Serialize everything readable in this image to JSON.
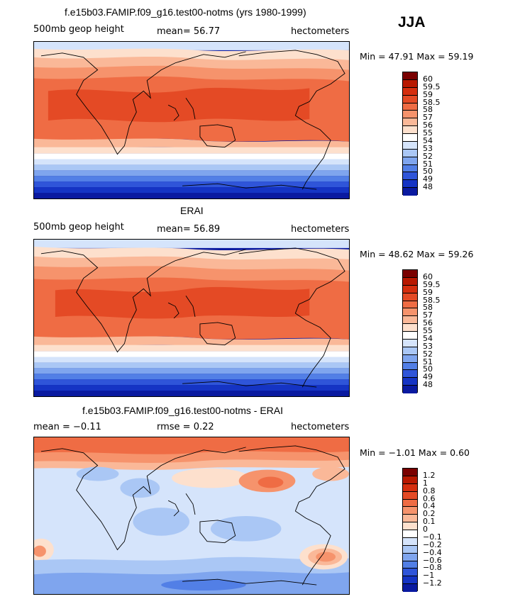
{
  "season": "JJA",
  "panels": [
    {
      "title": "f.e15b03.FAMIP.f09_g16.test00-notms (yrs 1980-1999)",
      "left_label": "500mb geop height",
      "center_label": "mean=  56.77",
      "right_label": "hectometers",
      "minmax": "Min =   47.91  Max =   59.19"
    },
    {
      "title": "ERAI",
      "left_label": "500mb geop height",
      "center_label": "mean=  56.89",
      "right_label": "hectometers",
      "minmax": "Min =   48.62  Max =   59.26"
    },
    {
      "title": "f.e15b03.FAMIP.f09_g16.test00-notms - ERAI",
      "left_label": "mean =   −0.11",
      "center_label": "rmse =    0.22",
      "right_label": "hectometers",
      "minmax": "Min =   −1.01  Max =    0.60"
    }
  ],
  "colorbar_field": {
    "labels": [
      "60",
      "59.5",
      "59",
      "58.5",
      "58",
      "57",
      "56",
      "55",
      "54",
      "53",
      "52",
      "51",
      "50",
      "49",
      "48"
    ],
    "colors": [
      "#7a0000",
      "#b81800",
      "#d52e0e",
      "#e44a25",
      "#ef6c44",
      "#f6936c",
      "#fab898",
      "#fde0cd",
      "#ffffff",
      "#d5e4fb",
      "#aac7f5",
      "#7fa5ee",
      "#527fe6",
      "#2f55d9",
      "#1534c4",
      "#0a1aa0"
    ]
  },
  "colorbar_diff": {
    "labels": [
      "1.2",
      "1",
      "0.8",
      "0.6",
      "0.4",
      "0.2",
      "0.1",
      "0",
      "−0.1",
      "−0.2",
      "−0.4",
      "−0.6",
      "−0.8",
      "−1",
      "−1.2"
    ],
    "colors": [
      "#7a0000",
      "#b81800",
      "#d52e0e",
      "#e44a25",
      "#ef6c44",
      "#f6936c",
      "#fab898",
      "#fde0cd",
      "#ffffff",
      "#d5e4fb",
      "#aac7f5",
      "#7fa5ee",
      "#527fe6",
      "#2f55d9",
      "#1534c4",
      "#0a1aa0"
    ]
  }
}
